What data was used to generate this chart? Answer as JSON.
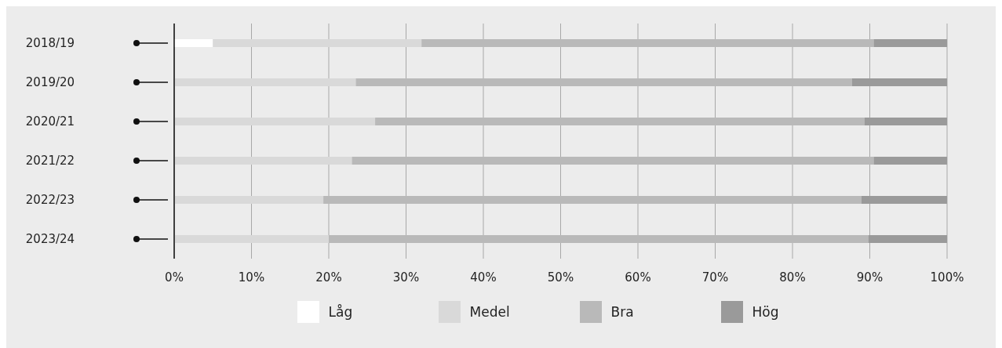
{
  "chart_data": {
    "type": "bar",
    "orientation": "horizontal",
    "stacked": true,
    "categories": [
      "2018/19",
      "2019/20",
      "2020/21",
      "2021/22",
      "2022/23",
      "2023/24"
    ],
    "series": [
      {
        "name": "Låg",
        "color": "#ffffff",
        "values": [
          5,
          0,
          0,
          0,
          0,
          0
        ]
      },
      {
        "name": "Medel",
        "color": "#d9d9d9",
        "values": [
          27,
          23.5,
          26,
          23,
          19.3,
          20
        ]
      },
      {
        "name": "Bra",
        "color": "#b9b9b9",
        "values": [
          58.5,
          64.2,
          63.3,
          67.5,
          69.6,
          69.8
        ]
      },
      {
        "name": "Hög",
        "color": "#9a9a9a",
        "values": [
          9.5,
          12.3,
          10.7,
          9.5,
          11.1,
          10.2
        ]
      }
    ],
    "xlim": [
      0,
      100
    ],
    "xticks": [
      {
        "value": 0,
        "label": "0%"
      },
      {
        "value": 10,
        "label": "10%"
      },
      {
        "value": 20,
        "label": "20%"
      },
      {
        "value": 30,
        "label": "30%"
      },
      {
        "value": 40,
        "label": "40%"
      },
      {
        "value": 50,
        "label": "50%"
      },
      {
        "value": 60,
        "label": "60%"
      },
      {
        "value": 70,
        "label": "70%"
      },
      {
        "value": 80,
        "label": "80%"
      },
      {
        "value": 90,
        "label": "90%"
      },
      {
        "value": 100,
        "label": "100%"
      }
    ],
    "grid": "x",
    "legend": "bottom"
  }
}
